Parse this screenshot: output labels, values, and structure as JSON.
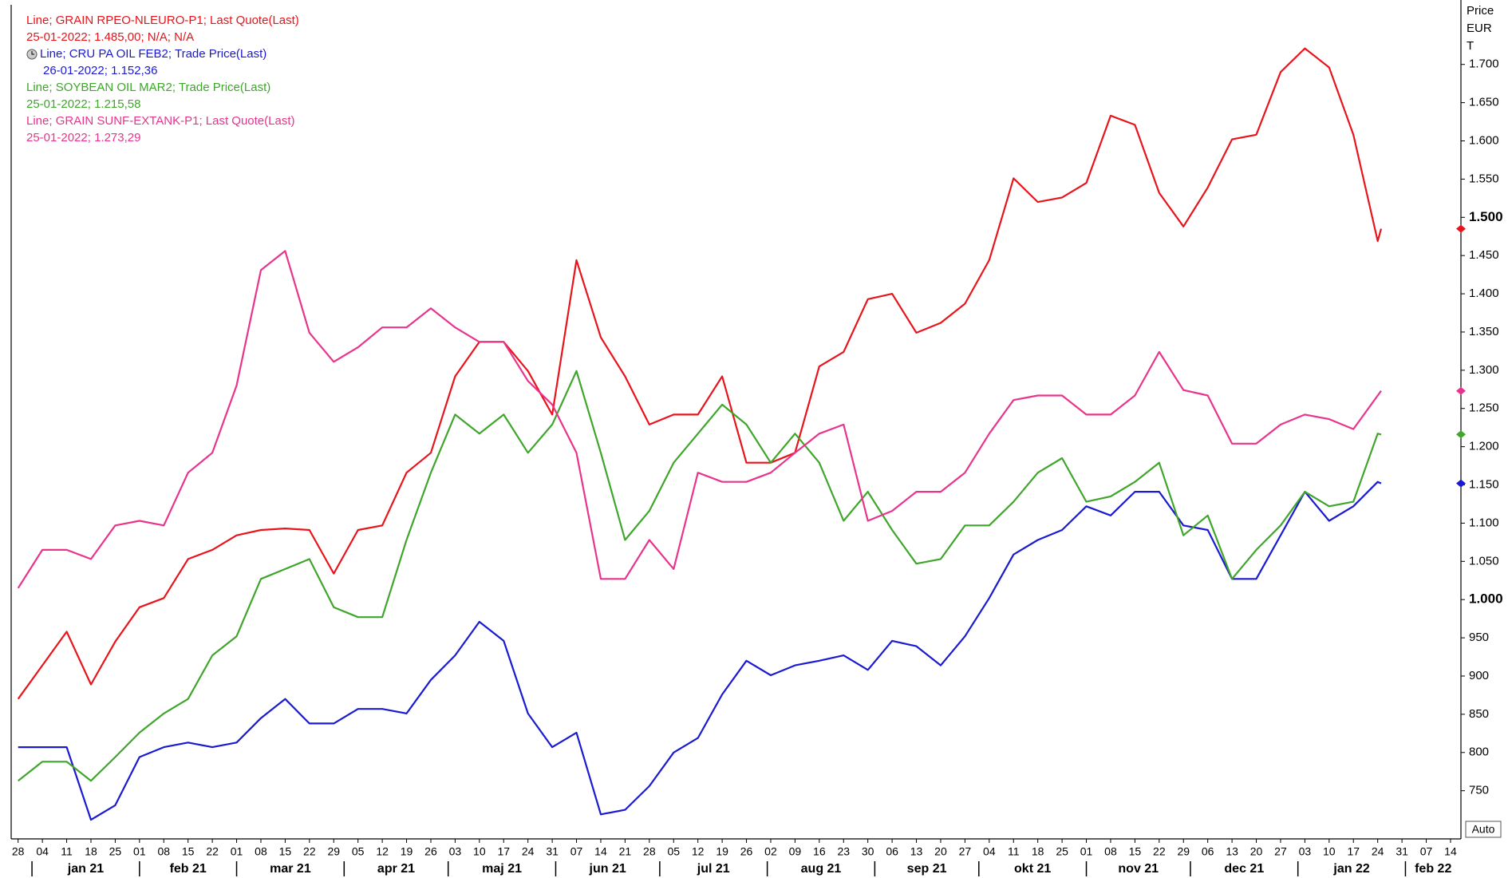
{
  "chart_data": {
    "type": "line",
    "y_axis_label": [
      "Price",
      "EUR",
      "T"
    ],
    "auto_button": "Auto",
    "xlim": [
      "2020-12-26",
      "2022-02-17"
    ],
    "ylim": [
      687,
      1778
    ],
    "yticks": [
      750,
      800,
      850,
      900,
      950,
      {
        "value": 1000,
        "label": "1.000",
        "bold": true
      },
      {
        "value": 1050,
        "label": "1.050"
      },
      {
        "value": 1100,
        "label": "1.100"
      },
      {
        "value": 1150,
        "label": "1.150"
      },
      {
        "value": 1200,
        "label": "1.200"
      },
      {
        "value": 1250,
        "label": "1.250"
      },
      {
        "value": 1300,
        "label": "1.300"
      },
      {
        "value": 1350,
        "label": "1.350"
      },
      {
        "value": 1400,
        "label": "1.400"
      },
      {
        "value": 1450,
        "label": "1.450"
      },
      {
        "value": 1500,
        "label": "1.500",
        "bold": true
      },
      {
        "value": 1550,
        "label": "1.550"
      },
      {
        "value": 1600,
        "label": "1.600"
      },
      {
        "value": 1650,
        "label": "1.650"
      },
      {
        "value": 1700,
        "label": "1.700"
      }
    ],
    "xticks": [
      {
        "value": "2020-12-28",
        "label": "28"
      },
      {
        "value": "2021-01-04",
        "label": "04"
      },
      {
        "value": "2021-01-11",
        "label": "11"
      },
      {
        "value": "2021-01-18",
        "label": "18"
      },
      {
        "value": "2021-01-25",
        "label": "25"
      },
      {
        "value": "2021-02-01",
        "label": "01"
      },
      {
        "value": "2021-02-08",
        "label": "08"
      },
      {
        "value": "2021-02-15",
        "label": "15"
      },
      {
        "value": "2021-02-22",
        "label": "22"
      },
      {
        "value": "2021-03-01",
        "label": "01"
      },
      {
        "value": "2021-03-08",
        "label": "08"
      },
      {
        "value": "2021-03-15",
        "label": "15"
      },
      {
        "value": "2021-03-22",
        "label": "22"
      },
      {
        "value": "2021-03-29",
        "label": "29"
      },
      {
        "value": "2021-04-05",
        "label": "05"
      },
      {
        "value": "2021-04-12",
        "label": "12"
      },
      {
        "value": "2021-04-19",
        "label": "19"
      },
      {
        "value": "2021-04-26",
        "label": "26"
      },
      {
        "value": "2021-05-03",
        "label": "03"
      },
      {
        "value": "2021-05-10",
        "label": "10"
      },
      {
        "value": "2021-05-17",
        "label": "17"
      },
      {
        "value": "2021-05-24",
        "label": "24"
      },
      {
        "value": "2021-05-31",
        "label": "31"
      },
      {
        "value": "2021-06-07",
        "label": "07"
      },
      {
        "value": "2021-06-14",
        "label": "14"
      },
      {
        "value": "2021-06-21",
        "label": "21"
      },
      {
        "value": "2021-06-28",
        "label": "28"
      },
      {
        "value": "2021-07-05",
        "label": "05"
      },
      {
        "value": "2021-07-12",
        "label": "12"
      },
      {
        "value": "2021-07-19",
        "label": "19"
      },
      {
        "value": "2021-07-26",
        "label": "26"
      },
      {
        "value": "2021-08-02",
        "label": "02"
      },
      {
        "value": "2021-08-09",
        "label": "09"
      },
      {
        "value": "2021-08-16",
        "label": "16"
      },
      {
        "value": "2021-08-23",
        "label": "23"
      },
      {
        "value": "2021-08-30",
        "label": "30"
      },
      {
        "value": "2021-09-06",
        "label": "06"
      },
      {
        "value": "2021-09-13",
        "label": "13"
      },
      {
        "value": "2021-09-20",
        "label": "20"
      },
      {
        "value": "2021-09-27",
        "label": "27"
      },
      {
        "value": "2021-10-04",
        "label": "04"
      },
      {
        "value": "2021-10-11",
        "label": "11"
      },
      {
        "value": "2021-10-18",
        "label": "18"
      },
      {
        "value": "2021-10-25",
        "label": "25"
      },
      {
        "value": "2021-11-01",
        "label": "01"
      },
      {
        "value": "2021-11-08",
        "label": "08"
      },
      {
        "value": "2021-11-15",
        "label": "15"
      },
      {
        "value": "2021-11-22",
        "label": "22"
      },
      {
        "value": "2021-11-29",
        "label": "29"
      },
      {
        "value": "2021-12-06",
        "label": "06"
      },
      {
        "value": "2021-12-13",
        "label": "13"
      },
      {
        "value": "2021-12-20",
        "label": "20"
      },
      {
        "value": "2021-12-27",
        "label": "27"
      },
      {
        "value": "2022-01-03",
        "label": "03"
      },
      {
        "value": "2022-01-10",
        "label": "10"
      },
      {
        "value": "2022-01-17",
        "label": "17"
      },
      {
        "value": "2022-01-24",
        "label": "24"
      },
      {
        "value": "2022-01-31",
        "label": "31"
      },
      {
        "value": "2022-02-07",
        "label": "07"
      },
      {
        "value": "2022-02-14",
        "label": "14"
      }
    ],
    "month_labels": [
      {
        "value": "2021-01-01",
        "label": "jan 21"
      },
      {
        "value": "2021-02-01",
        "label": "feb 21"
      },
      {
        "value": "2021-03-01",
        "label": "mar 21"
      },
      {
        "value": "2021-04-01",
        "label": "apr 21"
      },
      {
        "value": "2021-05-01",
        "label": "maj 21"
      },
      {
        "value": "2021-06-01",
        "label": "jun 21"
      },
      {
        "value": "2021-07-01",
        "label": "jul 21"
      },
      {
        "value": "2021-08-01",
        "label": "aug 21"
      },
      {
        "value": "2021-09-01",
        "label": "sep 21"
      },
      {
        "value": "2021-10-01",
        "label": "okt 21"
      },
      {
        "value": "2021-11-01",
        "label": "nov 21"
      },
      {
        "value": "2021-12-01",
        "label": "dec 21"
      },
      {
        "value": "2022-01-01",
        "label": "jan 22"
      },
      {
        "value": "2022-02-01",
        "label": "feb 22"
      }
    ],
    "x": [
      "2020-12-28",
      "2021-01-04",
      "2021-01-11",
      "2021-01-18",
      "2021-01-25",
      "2021-02-01",
      "2021-02-08",
      "2021-02-15",
      "2021-02-22",
      "2021-03-01",
      "2021-03-08",
      "2021-03-15",
      "2021-03-22",
      "2021-03-29",
      "2021-04-05",
      "2021-04-12",
      "2021-04-19",
      "2021-04-26",
      "2021-05-03",
      "2021-05-10",
      "2021-05-17",
      "2021-05-24",
      "2021-05-31",
      "2021-06-07",
      "2021-06-14",
      "2021-06-21",
      "2021-06-28",
      "2021-07-05",
      "2021-07-12",
      "2021-07-19",
      "2021-07-26",
      "2021-08-02",
      "2021-08-09",
      "2021-08-16",
      "2021-08-23",
      "2021-08-30",
      "2021-09-06",
      "2021-09-13",
      "2021-09-20",
      "2021-09-27",
      "2021-10-04",
      "2021-10-11",
      "2021-10-18",
      "2021-10-25",
      "2021-11-01",
      "2021-11-08",
      "2021-11-15",
      "2021-11-22",
      "2021-11-29",
      "2021-12-06",
      "2021-12-13",
      "2021-12-20",
      "2021-12-27",
      "2022-01-03",
      "2022-01-10",
      "2022-01-17",
      "2022-01-24",
      "2022-01-25"
    ],
    "series": [
      {
        "name": "Line; GRAIN RPEO-NLEURO-P1; Last Quote(Last)",
        "detail": "25-01-2022; 1.485,00; N/A; N/A",
        "color": "#e8141b",
        "values": [
          870,
          914,
          958,
          889,
          945,
          990,
          1002,
          1053,
          1065,
          1084,
          1091,
          1093,
          1091,
          1034,
          1091,
          1097,
          1166,
          1192,
          1292,
          1337,
          1337,
          1299,
          1242,
          1444,
          1343,
          1292,
          1229,
          1242,
          1242,
          1292,
          1179,
          1179,
          1192,
          1305,
          1324,
          1393,
          1400,
          1349,
          1362,
          1387,
          1444,
          1551,
          1520,
          1526,
          1545,
          1633,
          1621,
          1532,
          1488,
          1539,
          1602,
          1608,
          1690,
          1721,
          1696,
          1608,
          1469,
          1485
        ]
      },
      {
        "name": "Line; CRU PA OIL FEB2; Trade Price(Last)",
        "detail": "26-01-2022; 1.152,36",
        "color": "#1a1ad0",
        "icon": "clock",
        "values": [
          807,
          807,
          807,
          712,
          731,
          794,
          807,
          813,
          807,
          813,
          845,
          870,
          838,
          838,
          857,
          857,
          851,
          895,
          927,
          971,
          946,
          851,
          807,
          826,
          719,
          725,
          756,
          800,
          819,
          876,
          920,
          901,
          914,
          920,
          927,
          908,
          946,
          939,
          914,
          952,
          1002,
          1059,
          1078,
          1091,
          1122,
          1110,
          1141,
          1141,
          1097,
          1091,
          1027,
          1027,
          1084,
          1141,
          1103,
          1122,
          1154,
          1152
        ]
      },
      {
        "name": "Line; SOYBEAN OIL MAR2; Trade Price(Last)",
        "detail": "25-01-2022; 1.215,58",
        "color": "#3fa52b",
        "values": [
          763,
          788,
          788,
          763,
          794,
          826,
          851,
          870,
          927,
          952,
          1027,
          1040,
          1053,
          990,
          977,
          977,
          1078,
          1166,
          1242,
          1217,
          1242,
          1192,
          1229,
          1299,
          1192,
          1078,
          1116,
          1179,
          1217,
          1255,
          1229,
          1179,
          1217,
          1179,
          1103,
          1141,
          1091,
          1047,
          1053,
          1097,
          1097,
          1128,
          1166,
          1185,
          1128,
          1135,
          1154,
          1179,
          1084,
          1110,
          1027,
          1065,
          1097,
          1141,
          1122,
          1128,
          1217,
          1216
        ]
      },
      {
        "name": "Line; GRAIN SUNF-EXTANK-P1; Last Quote(Last)",
        "detail": "25-01-2022; 1.273,29",
        "color": "#e8348c",
        "values": [
          1015,
          1065,
          1065,
          1053,
          1097,
          1103,
          1097,
          1166,
          1192,
          1280,
          1431,
          1456,
          1349,
          1311,
          1330,
          1356,
          1356,
          1381,
          1356,
          1337,
          1337,
          1286,
          1255,
          1192,
          1027,
          1027,
          1078,
          1040,
          1166,
          1154,
          1154,
          1166,
          1192,
          1217,
          1229,
          1103,
          1116,
          1141,
          1141,
          1166,
          1217,
          1261,
          1267,
          1267,
          1242,
          1242,
          1267,
          1324,
          1274,
          1267,
          1204,
          1204,
          1229,
          1242,
          1236,
          1223,
          1267,
          1273
        ]
      }
    ]
  }
}
